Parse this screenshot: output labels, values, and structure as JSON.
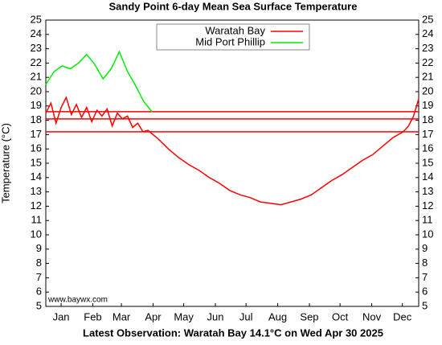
{
  "chart_data": {
    "type": "line",
    "title": "Sandy Point 6-day Mean Sea Surface Temperature",
    "ylabel": "Temperature (°C)",
    "footer": "Latest Observation: Waratah Bay 14.1°C on Wed Apr 30 2025",
    "watermark": "www.baywx.com",
    "xlim": [
      0,
      365
    ],
    "xticks": [
      {
        "value": 15,
        "label": "Jan"
      },
      {
        "value": 46,
        "label": "Feb"
      },
      {
        "value": 74,
        "label": "Mar"
      },
      {
        "value": 105,
        "label": "Apr"
      },
      {
        "value": 135,
        "label": "May"
      },
      {
        "value": 166,
        "label": "Jun"
      },
      {
        "value": 196,
        "label": "Jul"
      },
      {
        "value": 227,
        "label": "Aug"
      },
      {
        "value": 258,
        "label": "Sep"
      },
      {
        "value": 288,
        "label": "Oct"
      },
      {
        "value": 319,
        "label": "Nov"
      },
      {
        "value": 349,
        "label": "Dec"
      }
    ],
    "ylim": [
      5,
      25
    ],
    "yticks": [
      5,
      6,
      7,
      8,
      9,
      10,
      11,
      12,
      13,
      14,
      15,
      16,
      17,
      18,
      19,
      20,
      21,
      22,
      23,
      24,
      25
    ],
    "reference_lines": {
      "color": "#ff0000",
      "values": [
        18.6,
        18.1,
        17.2
      ]
    },
    "legend": "upper center",
    "series": [
      {
        "name": "Waratah Bay",
        "color": "#ff0000",
        "x": [
          0,
          5,
          10,
          15,
          20,
          25,
          30,
          35,
          40,
          45,
          50,
          55,
          60,
          65,
          70,
          75,
          80,
          85,
          90,
          95,
          100,
          110,
          120,
          130,
          140,
          150,
          160,
          170,
          180,
          190,
          200,
          210,
          220,
          230,
          240,
          250,
          260,
          270,
          280,
          290,
          300,
          310,
          320,
          330,
          340,
          350,
          355,
          360,
          365
        ],
        "values": [
          18.5,
          19.2,
          17.8,
          18.9,
          19.6,
          18.4,
          19.1,
          18.2,
          18.9,
          17.9,
          18.7,
          18.3,
          18.8,
          17.6,
          18.5,
          18.1,
          18.3,
          17.5,
          17.8,
          17.2,
          17.3,
          16.7,
          16.0,
          15.4,
          14.9,
          14.5,
          14.0,
          13.6,
          13.1,
          12.8,
          12.6,
          12.3,
          12.2,
          12.1,
          12.3,
          12.5,
          12.8,
          13.3,
          13.8,
          14.2,
          14.7,
          15.2,
          15.6,
          16.2,
          16.8,
          17.2,
          17.6,
          18.3,
          19.5
        ]
      },
      {
        "name": "Mid Port Phillip",
        "color": "#00ee00",
        "x": [
          0,
          8,
          16,
          24,
          32,
          40,
          48,
          56,
          64,
          72,
          80,
          88,
          96,
          104
        ],
        "values": [
          20.5,
          21.4,
          21.8,
          21.6,
          22.0,
          22.6,
          21.9,
          20.9,
          21.6,
          22.8,
          21.4,
          20.4,
          19.3,
          18.6
        ]
      }
    ]
  }
}
